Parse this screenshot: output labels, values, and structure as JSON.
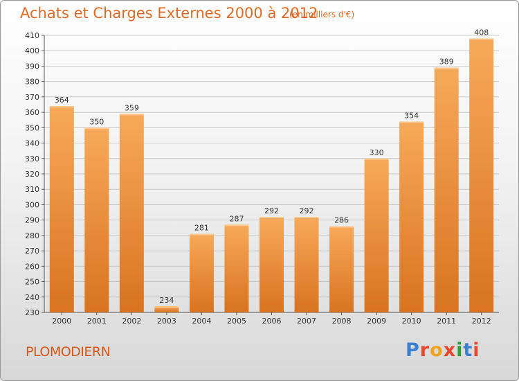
{
  "title": "Achats et Charges Externes 2000 à 2012",
  "unit": "(en milliers d'€)",
  "commune": "PLOMODIERN",
  "brand": {
    "letters": [
      "P",
      "r",
      "o",
      "x",
      "i",
      "t",
      "i"
    ],
    "colors": [
      "#3b7fd0",
      "#e8482c",
      "#f2a21b",
      "#e8482c",
      "#2f9e3a",
      "#3b7fd0",
      "#e8482c"
    ]
  },
  "colors": {
    "bar_light": "#f7a95a",
    "bar_dark": "#d9731f",
    "title": "#e06a24"
  },
  "chart_data": {
    "type": "bar",
    "categories": [
      "2000",
      "2001",
      "2002",
      "2003",
      "2004",
      "2005",
      "2006",
      "2007",
      "2008",
      "2009",
      "2010",
      "2011",
      "2012"
    ],
    "values": [
      364,
      350,
      359,
      234,
      281,
      287,
      292,
      292,
      286,
      330,
      354,
      389,
      408
    ],
    "ylim": [
      230,
      410
    ],
    "yticks": [
      230,
      240,
      250,
      260,
      270,
      280,
      290,
      300,
      310,
      320,
      330,
      340,
      350,
      360,
      370,
      380,
      390,
      400,
      410
    ],
    "grid": true
  }
}
